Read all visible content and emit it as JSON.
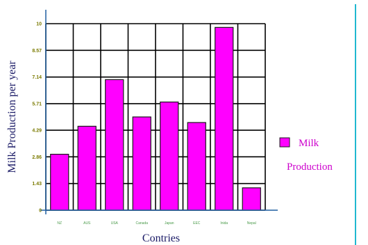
{
  "chart_data": {
    "type": "bar",
    "categories": [
      "NZ",
      "AUS",
      "USA",
      "Canada",
      "Japan",
      "EEC",
      "Inida",
      "Nepal"
    ],
    "values": [
      3.0,
      4.5,
      7.0,
      5.0,
      5.8,
      4.7,
      9.8,
      1.2
    ],
    "yticks": [
      "0",
      "1.43",
      "2.86",
      "4.29",
      "5.71",
      "7.14",
      "8.57",
      "10"
    ],
    "ylim": [
      0,
      10
    ],
    "xlabel": "Contries",
    "ylabel": "Milk  Production  per  year",
    "grid": true,
    "legend": {
      "position": "right",
      "entries": [
        "Milk",
        "Production"
      ]
    },
    "colors": {
      "bar_fill": "#ff00ff",
      "bar_stroke": "#1a1a1a",
      "grid": "#000000",
      "axis": "#1f5fa0",
      "plot_bg": "#ffffff",
      "right_border": "#20b8d0"
    }
  }
}
